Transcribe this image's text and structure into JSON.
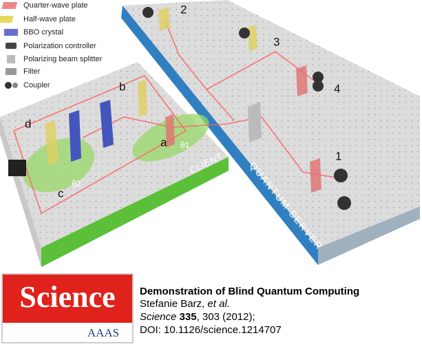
{
  "figure": {
    "legend": [
      "Quarter-wave plate",
      "Half-wave plate",
      "BBO crystal",
      "Polarization controller",
      "Polarizing beam splitter",
      "Filter",
      "Coupler"
    ],
    "server_labels": [
      "1",
      "2",
      "3",
      "4"
    ],
    "client_labels": [
      "a",
      "b",
      "c",
      "d"
    ],
    "theta_labels": [
      "θ1",
      "θ2"
    ],
    "client_table": "CLIENT",
    "server_table": "QUANTUM SERVER"
  },
  "citation": {
    "logo": "Science",
    "logo_sub": "AAAS",
    "title": "Demonstration of Blind Quantum Computing",
    "authors": "Stefanie Barz,",
    "et_al": "et al.",
    "journal": "Science",
    "volume": "335",
    "pages": ", 303 (2012);",
    "doi": "DOI: 10.1126/science.1214707"
  }
}
